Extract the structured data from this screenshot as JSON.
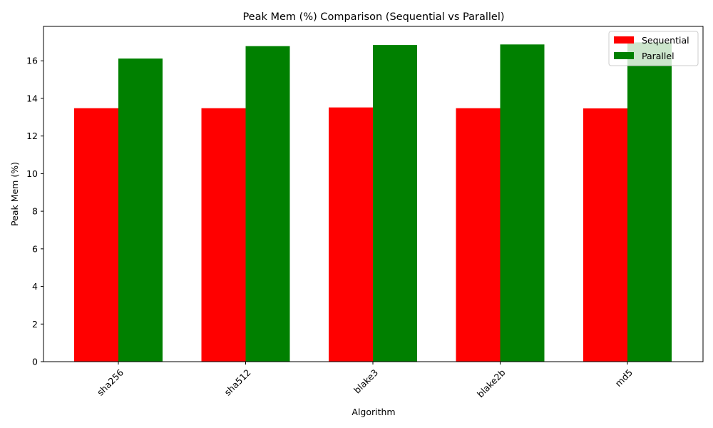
{
  "chart_data": {
    "type": "bar",
    "title": "Peak Mem (%) Comparison (Sequential vs Parallel)",
    "xlabel": "Algorithm",
    "ylabel": "Peak Mem (%)",
    "categories": [
      "sha256",
      "sha512",
      "blake3",
      "blake2b",
      "md5"
    ],
    "series": [
      {
        "name": "Sequential",
        "color": "#ff0000",
        "values": [
          13.48,
          13.48,
          13.52,
          13.48,
          13.47
        ]
      },
      {
        "name": "Parallel",
        "color": "#008000",
        "values": [
          16.12,
          16.78,
          16.84,
          16.87,
          16.98
        ]
      }
    ],
    "ylim": [
      0,
      17.83
    ],
    "yticks": [
      0,
      2,
      4,
      6,
      8,
      10,
      12,
      14,
      16
    ],
    "legend_position": "top-right",
    "grid": false,
    "xtick_rotation": 45
  }
}
